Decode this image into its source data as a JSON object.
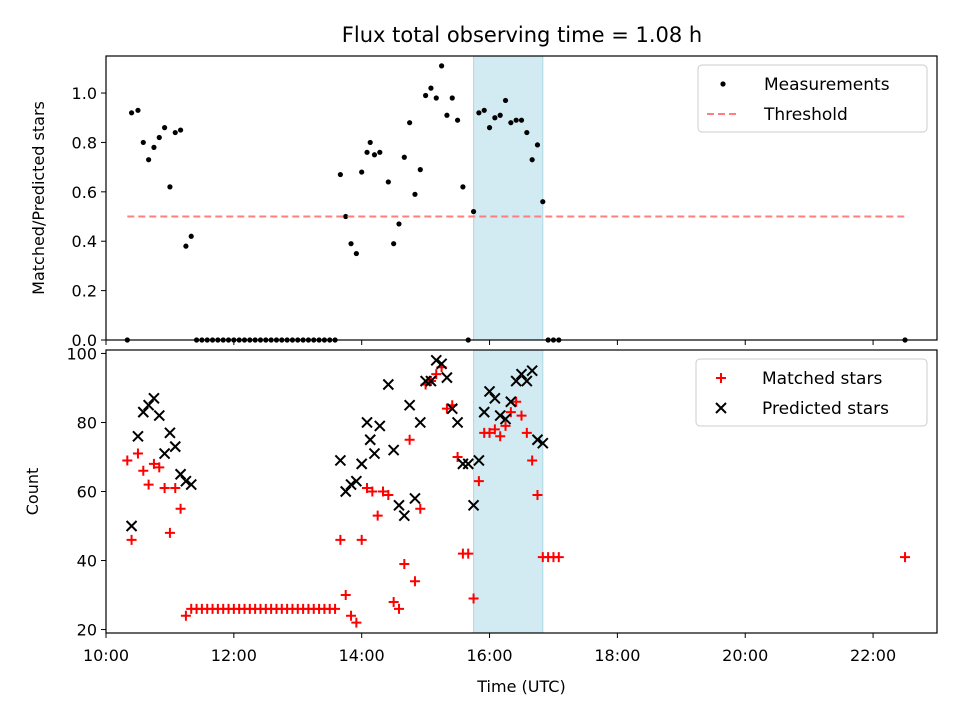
{
  "chart_data": [
    {
      "type": "scatter",
      "title": "Flux total observing time = 1.08 h",
      "ylabel": "Matched/Predicted stars",
      "xlabel": "",
      "xlim": [
        "10:00",
        "23:00"
      ],
      "ylim": [
        0,
        1.15
      ],
      "yticks": [
        "0.0",
        "0.2",
        "0.4",
        "0.6",
        "0.8",
        "1.0"
      ],
      "legend_position": "top-right",
      "highlight_span": {
        "from": "15:45",
        "to": "16:50",
        "color": "#add8e6"
      },
      "series": [
        {
          "name": "Measurements",
          "marker": "dot",
          "color": "#000000",
          "points": [
            [
              "10:20",
              0.0
            ],
            [
              "10:24",
              0.92
            ],
            [
              "10:30",
              0.93
            ],
            [
              "10:35",
              0.8
            ],
            [
              "10:40",
              0.73
            ],
            [
              "10:45",
              0.78
            ],
            [
              "10:50",
              0.82
            ],
            [
              "10:55",
              0.86
            ],
            [
              "11:00",
              0.62
            ],
            [
              "11:05",
              0.84
            ],
            [
              "11:10",
              0.85
            ],
            [
              "11:15",
              0.38
            ],
            [
              "11:20",
              0.42
            ],
            [
              "11:25",
              0.0
            ],
            [
              "11:30",
              0.0
            ],
            [
              "11:35",
              0.0
            ],
            [
              "11:40",
              0.0
            ],
            [
              "11:45",
              0.0
            ],
            [
              "11:50",
              0.0
            ],
            [
              "11:55",
              0.0
            ],
            [
              "12:00",
              0.0
            ],
            [
              "12:05",
              0.0
            ],
            [
              "12:10",
              0.0
            ],
            [
              "12:15",
              0.0
            ],
            [
              "12:20",
              0.0
            ],
            [
              "12:25",
              0.0
            ],
            [
              "12:30",
              0.0
            ],
            [
              "12:35",
              0.0
            ],
            [
              "12:40",
              0.0
            ],
            [
              "12:45",
              0.0
            ],
            [
              "12:50",
              0.0
            ],
            [
              "12:55",
              0.0
            ],
            [
              "13:00",
              0.0
            ],
            [
              "13:05",
              0.0
            ],
            [
              "13:10",
              0.0
            ],
            [
              "13:15",
              0.0
            ],
            [
              "13:20",
              0.0
            ],
            [
              "13:25",
              0.0
            ],
            [
              "13:30",
              0.0
            ],
            [
              "13:35",
              0.0
            ],
            [
              "13:40",
              0.67
            ],
            [
              "13:45",
              0.5
            ],
            [
              "13:50",
              0.39
            ],
            [
              "13:55",
              0.35
            ],
            [
              "14:00",
              0.68
            ],
            [
              "14:05",
              0.76
            ],
            [
              "14:08",
              0.8
            ],
            [
              "14:12",
              0.75
            ],
            [
              "14:17",
              0.76
            ],
            [
              "14:25",
              0.64
            ],
            [
              "14:30",
              0.39
            ],
            [
              "14:35",
              0.47
            ],
            [
              "14:40",
              0.74
            ],
            [
              "14:45",
              0.88
            ],
            [
              "14:50",
              0.59
            ],
            [
              "14:55",
              0.69
            ],
            [
              "15:00",
              0.99
            ],
            [
              "15:05",
              1.02
            ],
            [
              "15:10",
              0.98
            ],
            [
              "15:15",
              1.11
            ],
            [
              "15:20",
              0.91
            ],
            [
              "15:25",
              0.98
            ],
            [
              "15:30",
              0.89
            ],
            [
              "15:35",
              0.62
            ],
            [
              "15:40",
              0.0
            ],
            [
              "15:45",
              0.52
            ],
            [
              "15:50",
              0.92
            ],
            [
              "15:55",
              0.93
            ],
            [
              "16:00",
              0.86
            ],
            [
              "16:05",
              0.9
            ],
            [
              "16:10",
              0.91
            ],
            [
              "16:15",
              0.97
            ],
            [
              "16:20",
              0.88
            ],
            [
              "16:25",
              0.89
            ],
            [
              "16:30",
              0.89
            ],
            [
              "16:35",
              0.84
            ],
            [
              "16:40",
              0.73
            ],
            [
              "16:45",
              0.79
            ],
            [
              "16:50",
              0.56
            ],
            [
              "16:55",
              0.0
            ],
            [
              "17:00",
              0.0
            ],
            [
              "17:05",
              0.0
            ],
            [
              "22:30",
              0.0
            ]
          ]
        },
        {
          "name": "Threshold",
          "marker": "dashed-line",
          "color": "#ff7f7f",
          "points": [
            [
              "10:20",
              0.5
            ],
            [
              "22:30",
              0.5
            ]
          ]
        }
      ]
    },
    {
      "type": "scatter",
      "title": "",
      "ylabel": "Count",
      "xlabel": "Time (UTC)",
      "xlim": [
        "10:00",
        "23:00"
      ],
      "ylim": [
        19,
        101
      ],
      "yticks": [
        "20",
        "40",
        "60",
        "80",
        "100"
      ],
      "xticks": [
        "10:00",
        "12:00",
        "14:00",
        "16:00",
        "18:00",
        "20:00",
        "22:00"
      ],
      "legend_position": "top-right",
      "highlight_span": {
        "from": "15:45",
        "to": "16:50",
        "color": "#add8e6"
      },
      "series": [
        {
          "name": "Matched stars",
          "marker": "plus",
          "color": "#ff0000",
          "points": [
            [
              "10:20",
              69
            ],
            [
              "10:24",
              46
            ],
            [
              "10:30",
              71
            ],
            [
              "10:35",
              66
            ],
            [
              "10:40",
              62
            ],
            [
              "10:45",
              68
            ],
            [
              "10:50",
              67
            ],
            [
              "10:55",
              61
            ],
            [
              "11:00",
              48
            ],
            [
              "11:05",
              61
            ],
            [
              "11:10",
              55
            ],
            [
              "11:15",
              24
            ],
            [
              "11:20",
              26
            ],
            [
              "11:25",
              26
            ],
            [
              "11:30",
              26
            ],
            [
              "11:35",
              26
            ],
            [
              "11:40",
              26
            ],
            [
              "11:45",
              26
            ],
            [
              "11:50",
              26
            ],
            [
              "11:55",
              26
            ],
            [
              "12:00",
              26
            ],
            [
              "12:05",
              26
            ],
            [
              "12:10",
              26
            ],
            [
              "12:15",
              26
            ],
            [
              "12:20",
              26
            ],
            [
              "12:25",
              26
            ],
            [
              "12:30",
              26
            ],
            [
              "12:35",
              26
            ],
            [
              "12:40",
              26
            ],
            [
              "12:45",
              26
            ],
            [
              "12:50",
              26
            ],
            [
              "12:55",
              26
            ],
            [
              "13:00",
              26
            ],
            [
              "13:05",
              26
            ],
            [
              "13:10",
              26
            ],
            [
              "13:15",
              26
            ],
            [
              "13:20",
              26
            ],
            [
              "13:25",
              26
            ],
            [
              "13:30",
              26
            ],
            [
              "13:35",
              26
            ],
            [
              "13:40",
              46
            ],
            [
              "13:45",
              30
            ],
            [
              "13:50",
              24
            ],
            [
              "13:55",
              22
            ],
            [
              "14:00",
              46
            ],
            [
              "14:05",
              61
            ],
            [
              "14:10",
              60
            ],
            [
              "14:15",
              53
            ],
            [
              "14:20",
              60
            ],
            [
              "14:25",
              59
            ],
            [
              "14:30",
              28
            ],
            [
              "14:35",
              26
            ],
            [
              "14:40",
              39
            ],
            [
              "14:45",
              75
            ],
            [
              "14:50",
              34
            ],
            [
              "14:55",
              55
            ],
            [
              "15:00",
              91
            ],
            [
              "15:05",
              92
            ],
            [
              "15:10",
              94
            ],
            [
              "15:15",
              96
            ],
            [
              "15:20",
              84
            ],
            [
              "15:25",
              85
            ],
            [
              "15:30",
              70
            ],
            [
              "15:35",
              42
            ],
            [
              "15:40",
              42
            ],
            [
              "15:45",
              29
            ],
            [
              "15:50",
              63
            ],
            [
              "15:55",
              77
            ],
            [
              "16:00",
              77
            ],
            [
              "16:05",
              78
            ],
            [
              "16:10",
              76
            ],
            [
              "16:15",
              79
            ],
            [
              "16:20",
              83
            ],
            [
              "16:25",
              86
            ],
            [
              "16:30",
              82
            ],
            [
              "16:35",
              77
            ],
            [
              "16:40",
              69
            ],
            [
              "16:45",
              59
            ],
            [
              "16:50",
              41
            ],
            [
              "16:55",
              41
            ],
            [
              "17:00",
              41
            ],
            [
              "17:05",
              41
            ],
            [
              "22:30",
              41
            ]
          ]
        },
        {
          "name": "Predicted stars",
          "marker": "x",
          "color": "#000000",
          "points": [
            [
              "10:24",
              50
            ],
            [
              "10:30",
              76
            ],
            [
              "10:35",
              83
            ],
            [
              "10:40",
              85
            ],
            [
              "10:45",
              87
            ],
            [
              "10:50",
              82
            ],
            [
              "10:55",
              71
            ],
            [
              "11:00",
              77
            ],
            [
              "11:05",
              73
            ],
            [
              "11:10",
              65
            ],
            [
              "11:15",
              63
            ],
            [
              "11:20",
              62
            ],
            [
              "13:40",
              69
            ],
            [
              "13:45",
              60
            ],
            [
              "13:50",
              62
            ],
            [
              "13:55",
              63
            ],
            [
              "14:00",
              68
            ],
            [
              "14:05",
              80
            ],
            [
              "14:08",
              75
            ],
            [
              "14:12",
              71
            ],
            [
              "14:17",
              79
            ],
            [
              "14:25",
              91
            ],
            [
              "14:30",
              72
            ],
            [
              "14:35",
              56
            ],
            [
              "14:40",
              53
            ],
            [
              "14:45",
              85
            ],
            [
              "14:50",
              58
            ],
            [
              "14:55",
              80
            ],
            [
              "15:00",
              92
            ],
            [
              "15:05",
              92
            ],
            [
              "15:10",
              98
            ],
            [
              "15:15",
              97
            ],
            [
              "15:20",
              93
            ],
            [
              "15:25",
              84
            ],
            [
              "15:30",
              80
            ],
            [
              "15:35",
              68
            ],
            [
              "15:40",
              68
            ],
            [
              "15:45",
              56
            ],
            [
              "15:50",
              69
            ],
            [
              "15:55",
              83
            ],
            [
              "16:00",
              89
            ],
            [
              "16:05",
              87
            ],
            [
              "16:10",
              82
            ],
            [
              "16:15",
              81
            ],
            [
              "16:20",
              86
            ],
            [
              "16:25",
              92
            ],
            [
              "16:30",
              94
            ],
            [
              "16:35",
              92
            ],
            [
              "16:40",
              95
            ],
            [
              "16:45",
              75
            ],
            [
              "16:50",
              74
            ]
          ]
        }
      ]
    }
  ]
}
